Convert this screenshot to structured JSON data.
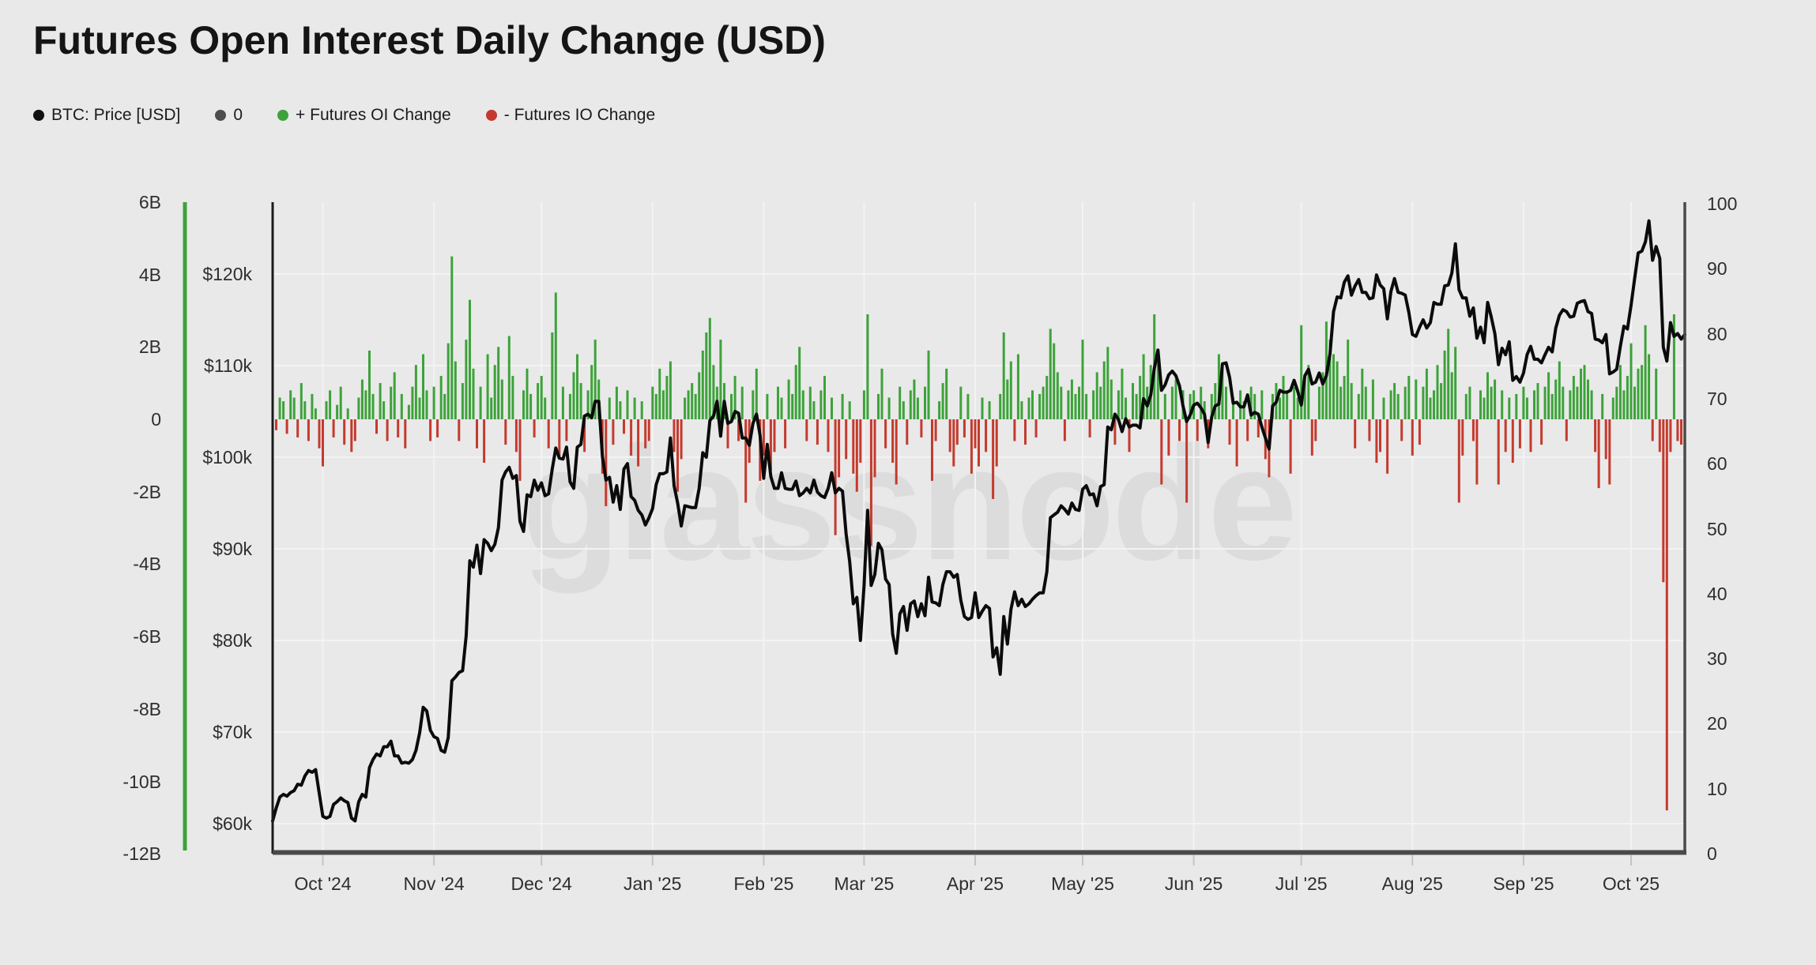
{
  "title": "Futures Open Interest Daily Change (USD)",
  "watermark": "glassnode",
  "legend": {
    "items": [
      {
        "label": "BTC: Price [USD]",
        "color": "#111111"
      },
      {
        "label": "0",
        "color": "#4d4d4d"
      },
      {
        "label": "+ Futures OI Change",
        "color": "#3da23a"
      },
      {
        "label": "- Futures IO Change",
        "color": "#c43a2e"
      }
    ]
  },
  "colors": {
    "background": "#e9e9e9",
    "gridline": "#f3f3f3",
    "price_line": "#0b0b0b",
    "bar_positive": "#3da23a",
    "bar_negative": "#c43a2e",
    "oi_axis_line": "#3da23a",
    "price_axis_line": "#1a1a1a",
    "frame_axis_line": "#4a4a4a",
    "tick_mark": "#c4c4c4",
    "watermark_color": "#dcdcdc"
  },
  "chart_data": {
    "type": "bar+line",
    "title": "Futures Open Interest Daily Change (USD)",
    "legend_position": "top-left",
    "grid": "horizontal price steps + vertical month steps",
    "x_axis": {
      "tick_labels": [
        "Oct '24",
        "Nov '24",
        "Dec '24",
        "Jan '25",
        "Feb '25",
        "Mar '25",
        "Apr '25",
        "May '25",
        "Jun '25",
        "Jul '25",
        "Aug '25",
        "Sep '25",
        "Oct '25"
      ],
      "tick_day_index": [
        14,
        45,
        75,
        106,
        137,
        165,
        196,
        226,
        257,
        287,
        318,
        349,
        379
      ],
      "days_total": 395
    },
    "y_left_oi": {
      "unit": "B USD",
      "labels": [
        "6B",
        "4B",
        "2B",
        "0",
        "-2B",
        "-4B",
        "-6B",
        "-8B",
        "-10B",
        "-12B"
      ],
      "values_b": [
        6,
        4,
        2,
        0,
        -2,
        -4,
        -6,
        -8,
        -10,
        -12
      ],
      "min": -12,
      "max": 6
    },
    "y_price": {
      "unit": "USD thousands",
      "labels": [
        "$120k",
        "$110k",
        "$100k",
        "$90k",
        "$80k",
        "$70k",
        "$60k"
      ],
      "values_k": [
        120,
        110,
        100,
        90,
        80,
        70,
        60
      ]
    },
    "y_right": {
      "labels": [
        "100",
        "90",
        "80",
        "70",
        "60",
        "50",
        "40",
        "30",
        "20",
        "10",
        "0"
      ],
      "values": [
        100,
        90,
        80,
        70,
        60,
        50,
        40,
        30,
        20,
        10,
        0
      ],
      "min": 0,
      "max": 100
    },
    "series": [
      {
        "name": "BTC: Price [USD]",
        "type": "line",
        "unit": "USD thousands",
        "values": [
          60.3,
          61.7,
          62.9,
          63.2,
          63.0,
          63.4,
          63.6,
          64.3,
          64.2,
          65.2,
          65.8,
          65.6,
          65.9,
          63.3,
          60.8,
          60.6,
          60.8,
          62.1,
          62.4,
          62.8,
          62.5,
          62.3,
          60.6,
          60.3,
          62.4,
          63.2,
          62.9,
          66.1,
          67.0,
          67.6,
          67.4,
          68.4,
          68.4,
          69.0,
          67.4,
          67.4,
          66.6,
          66.7,
          66.6,
          67.0,
          68.0,
          69.9,
          72.7,
          72.3,
          70.2,
          69.5,
          69.3,
          68.0,
          67.8,
          69.4,
          75.6,
          76.0,
          76.5,
          76.7,
          80.5,
          88.7,
          88.0,
          90.4,
          87.3,
          91.0,
          90.6,
          89.8,
          90.5,
          92.3,
          97.5,
          98.4,
          98.9,
          97.7,
          98.0,
          93.0,
          91.9,
          95.9,
          95.7,
          97.5,
          96.4,
          97.2,
          95.8,
          96.0,
          98.7,
          101.0,
          99.9,
          99.8,
          101.1,
          97.3,
          96.6,
          101.1,
          101.4,
          104.5,
          104.7,
          104.3,
          106.1,
          106.1,
          100.1,
          97.5,
          97.8,
          95.1,
          96.9,
          94.3,
          98.7,
          99.3,
          95.7,
          95.3,
          94.2,
          93.7,
          92.6,
          93.4,
          94.4,
          97.0,
          98.2,
          98.2,
          98.4,
          102.1,
          96.9,
          95.0,
          92.5,
          94.7,
          94.6,
          94.5,
          94.5,
          96.6,
          100.5,
          100.0,
          104.0,
          104.5,
          106.1,
          102.3,
          106.1,
          103.7,
          103.9,
          105.0,
          104.8,
          102.1,
          102.1,
          101.3,
          103.7,
          104.7,
          102.4,
          97.7,
          101.4,
          97.9,
          96.6,
          96.6,
          98.3,
          96.6,
          96.5,
          96.5,
          97.4,
          95.8,
          96.1,
          96.6,
          96.1,
          97.5,
          96.2,
          95.8,
          95.6,
          96.6,
          98.3,
          96.1,
          96.6,
          96.3,
          91.6,
          88.6,
          84.0,
          84.7,
          80.0,
          86.0,
          94.2,
          86.0,
          87.2,
          90.6,
          89.9,
          86.7,
          86.1,
          80.7,
          78.6,
          82.9,
          83.7,
          81.1,
          84.0,
          84.3,
          82.6,
          84.0,
          82.7,
          86.9,
          84.2,
          84.1,
          83.8,
          86.1,
          87.5,
          87.5,
          86.9,
          87.2,
          84.4,
          82.6,
          82.3,
          82.5,
          85.2,
          82.5,
          83.2,
          83.8,
          83.5,
          78.2,
          79.2,
          76.3,
          82.6,
          79.6,
          83.4,
          85.3,
          83.8,
          84.5,
          83.7,
          84.0,
          84.5,
          84.9,
          85.2,
          85.2,
          87.5,
          93.4,
          93.7,
          94.0,
          94.7,
          94.3,
          93.8,
          95.0,
          94.3,
          94.2,
          96.5,
          96.9,
          95.9,
          96.0,
          94.7,
          96.8,
          97.0,
          103.3,
          103.0,
          104.7,
          104.1,
          102.8,
          104.2,
          103.3,
          103.5,
          103.5,
          103.2,
          106.4,
          105.6,
          106.8,
          109.7,
          111.7,
          107.3,
          107.9,
          109.0,
          109.4,
          108.9,
          107.8,
          105.6,
          103.9,
          104.6,
          105.7,
          105.9,
          105.4,
          104.7,
          101.6,
          104.4,
          105.6,
          105.8,
          110.2,
          110.3,
          108.7,
          105.9,
          106.0,
          105.5,
          105.5,
          106.8,
          104.6,
          104.9,
          104.7,
          103.3,
          102.1,
          100.9,
          105.6,
          106.0,
          107.3,
          107.1,
          107.1,
          107.3,
          108.4,
          107.2,
          105.7,
          108.9,
          109.6,
          108.0,
          108.2,
          109.2,
          108.0,
          108.9,
          111.3,
          115.9,
          117.5,
          117.4,
          119.1,
          119.8,
          117.7,
          118.7,
          119.4,
          118.0,
          118.0,
          117.3,
          117.4,
          119.9,
          118.8,
          118.4,
          115.1,
          118.1,
          119.5,
          118.0,
          117.9,
          117.7,
          115.8,
          113.4,
          113.2,
          114.2,
          115.0,
          114.1,
          114.7,
          116.9,
          116.7,
          116.7,
          118.7,
          118.8,
          120.1,
          123.3,
          118.3,
          117.4,
          117.4,
          115.4,
          116.3,
          113.0,
          114.2,
          112.5,
          116.9,
          115.3,
          113.5,
          110.1,
          111.9,
          111.2,
          112.6,
          108.4,
          108.8,
          108.2,
          109.2,
          111.2,
          112.1,
          110.7,
          110.7,
          110.3,
          111.2,
          112.0,
          111.5,
          114.1,
          115.5,
          116.1,
          115.9,
          115.3,
          115.4,
          116.8,
          117.0,
          117.1,
          115.9,
          115.7,
          112.9,
          112.8,
          112.5,
          113.4,
          109.1,
          109.3,
          109.6,
          112.1,
          114.3,
          114.0,
          116.6,
          119.5,
          122.3,
          122.5,
          123.5,
          125.8,
          121.5,
          123.0,
          121.7,
          112.0,
          110.5,
          114.7,
          113.2,
          113.5,
          112.9,
          113.4
        ]
      },
      {
        "name": "Futures OI Change",
        "type": "bar",
        "unit": "B USD",
        "color_positive": "#3da23a",
        "color_negative": "#c43a2e",
        "values": [
          0.4,
          -0.3,
          0.6,
          0.5,
          -0.4,
          0.8,
          0.6,
          -0.5,
          1.0,
          0.5,
          -0.6,
          0.7,
          0.3,
          -0.8,
          -1.3,
          0.5,
          0.8,
          -0.5,
          0.4,
          0.9,
          -0.7,
          0.3,
          -0.9,
          -0.6,
          0.6,
          1.1,
          0.8,
          1.9,
          0.7,
          -0.4,
          1.0,
          0.5,
          -0.6,
          0.9,
          1.3,
          -0.5,
          0.7,
          -0.8,
          0.4,
          0.9,
          1.5,
          0.6,
          1.8,
          0.8,
          -0.6,
          0.9,
          -0.5,
          1.2,
          0.7,
          2.1,
          4.5,
          1.6,
          -0.6,
          1.0,
          2.2,
          3.3,
          1.4,
          -0.8,
          0.9,
          -1.2,
          1.8,
          0.6,
          1.5,
          2.0,
          1.1,
          -0.7,
          2.3,
          1.2,
          -0.9,
          -1.7,
          0.8,
          1.4,
          0.7,
          -0.5,
          1.0,
          1.2,
          0.6,
          -0.8,
          2.4,
          3.5,
          -1.1,
          0.9,
          -0.6,
          0.7,
          1.3,
          1.8,
          1.0,
          -0.9,
          0.8,
          1.5,
          2.2,
          1.1,
          -1.5,
          -2.4,
          0.6,
          -0.7,
          0.9,
          0.5,
          -0.4,
          0.8,
          -1.0,
          0.6,
          -1.3,
          0.5,
          -0.8,
          -0.6,
          0.9,
          0.7,
          1.4,
          0.8,
          1.2,
          1.6,
          -0.9,
          -2.0,
          -1.1,
          0.6,
          0.8,
          1.0,
          0.7,
          1.3,
          1.9,
          2.4,
          2.8,
          1.5,
          0.9,
          2.2,
          1.0,
          -0.8,
          0.7,
          1.2,
          -0.6,
          0.9,
          -2.3,
          -1.2,
          0.8,
          1.4,
          -1.7,
          -1.0,
          0.7,
          -1.4,
          -0.9,
          0.9,
          0.6,
          -0.8,
          1.1,
          0.7,
          1.5,
          2.0,
          0.8,
          -0.6,
          0.9,
          0.5,
          -0.7,
          0.8,
          1.2,
          -0.9,
          0.6,
          -3.2,
          -1.6,
          0.7,
          -1.1,
          0.5,
          -1.5,
          -2.0,
          -1.2,
          0.8,
          2.9,
          -3.5,
          -1.6,
          0.7,
          1.4,
          -0.8,
          0.6,
          -1.2,
          -1.8,
          0.9,
          0.5,
          -0.7,
          0.8,
          1.1,
          0.6,
          -0.5,
          0.9,
          1.9,
          -1.7,
          -0.6,
          0.5,
          1.0,
          1.4,
          -0.9,
          -1.3,
          -0.7,
          0.9,
          -0.5,
          0.7,
          -1.5,
          -0.8,
          -1.3,
          0.6,
          -0.9,
          0.5,
          -2.2,
          -1.3,
          0.7,
          2.4,
          1.1,
          1.6,
          -0.6,
          1.8,
          0.5,
          -0.7,
          0.6,
          0.8,
          -0.5,
          0.7,
          0.9,
          1.2,
          2.5,
          2.1,
          1.3,
          0.9,
          -0.6,
          0.8,
          1.1,
          0.7,
          0.9,
          2.2,
          0.7,
          -0.5,
          0.8,
          1.3,
          0.9,
          1.6,
          2.0,
          1.1,
          -0.7,
          0.8,
          1.4,
          0.6,
          -0.9,
          1.0,
          0.7,
          1.2,
          1.8,
          0.9,
          1.5,
          2.9,
          1.6,
          -1.8,
          0.7,
          -1.0,
          0.9,
          1.1,
          -0.6,
          0.8,
          -2.3,
          0.7,
          0.8,
          -0.6,
          0.9,
          0.5,
          -0.8,
          0.7,
          1.0,
          1.8,
          1.4,
          0.9,
          -0.7,
          0.6,
          -1.3,
          0.8,
          0.5,
          -0.6,
          0.9,
          0.7,
          -0.5,
          0.8,
          -1.1,
          -1.6,
          0.7,
          1.0,
          0.6,
          1.2,
          0.8,
          -1.5,
          0.9,
          0.6,
          2.6,
          1.1,
          1.5,
          -1.0,
          -0.6,
          0.9,
          1.3,
          2.7,
          2.2,
          1.8,
          1.6,
          0.9,
          1.2,
          2.2,
          1.0,
          -0.8,
          0.7,
          1.4,
          0.9,
          -0.6,
          1.1,
          -1.2,
          -0.9,
          0.6,
          -1.5,
          0.8,
          1.0,
          0.7,
          -0.6,
          0.9,
          1.2,
          -1.0,
          1.1,
          -0.7,
          0.9,
          1.4,
          0.6,
          0.8,
          1.5,
          1.0,
          1.9,
          2.5,
          1.3,
          2.0,
          -2.3,
          -1.0,
          0.7,
          0.9,
          -0.6,
          -1.8,
          0.8,
          0.6,
          1.3,
          0.9,
          1.1,
          -1.8,
          0.8,
          -0.9,
          0.6,
          -1.2,
          0.7,
          -0.8,
          0.9,
          0.6,
          -0.9,
          0.8,
          1.0,
          -0.7,
          0.9,
          1.3,
          0.7,
          1.1,
          1.6,
          0.9,
          -0.6,
          0.8,
          1.2,
          0.9,
          1.4,
          1.5,
          1.1,
          0.8,
          -0.9,
          -1.9,
          0.7,
          -1.1,
          -1.8,
          0.6,
          0.9,
          1.5,
          0.8,
          1.2,
          2.1,
          0.9,
          1.4,
          1.5,
          2.6,
          1.8,
          -0.6,
          1.4,
          -0.9,
          -4.5,
          -10.8,
          -0.9,
          2.9,
          -0.6,
          -0.7,
          -0.5
        ]
      }
    ]
  }
}
